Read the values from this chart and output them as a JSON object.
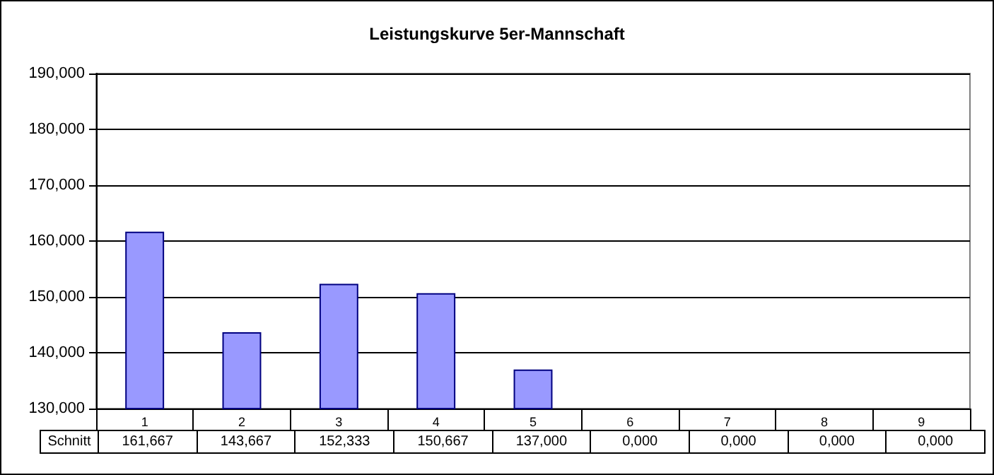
{
  "chart_data": {
    "type": "bar",
    "title": "Leistungskurve 5er-Mannschaft",
    "categories": [
      "1",
      "2",
      "3",
      "4",
      "5",
      "6",
      "7",
      "8",
      "9"
    ],
    "series": [
      {
        "name": "Schnitt",
        "color": "#9999ff",
        "values": [
          161.667,
          143.667,
          152.333,
          150.667,
          137.0,
          null,
          null,
          null,
          null
        ],
        "value_labels": [
          "161,667",
          "143,667",
          "152,333",
          "150,667",
          "137,000",
          "0,000",
          "0,000",
          "0,000",
          "0,000"
        ]
      }
    ],
    "ylim": [
      130,
      190
    ],
    "yticks": [
      {
        "value": 130,
        "label": "130,000"
      },
      {
        "value": 140,
        "label": "140,000"
      },
      {
        "value": 150,
        "label": "150,000"
      },
      {
        "value": 160,
        "label": "160,000"
      },
      {
        "value": 170,
        "label": "170,000"
      },
      {
        "value": 180,
        "label": "180,000"
      },
      {
        "value": 190,
        "label": "190,000"
      }
    ],
    "grid": "y",
    "legend": false
  }
}
